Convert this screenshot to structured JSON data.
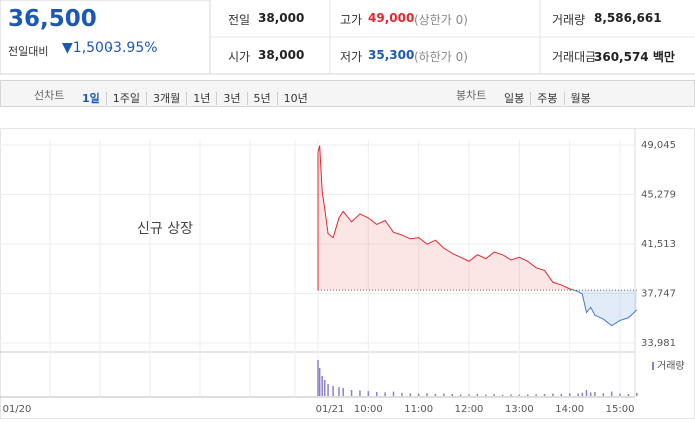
{
  "quote": {
    "price": "36,500",
    "change_label": "전일대비",
    "change": "1,500",
    "change_rate": "-3.95%",
    "prev_close_label": "전일",
    "prev_close": "38,000",
    "open_label": "시가",
    "open": "38,000",
    "high_label": "고가",
    "high": "49,000",
    "upper_limit": "(상한가 0)",
    "low_label": "저가",
    "low": "35,300",
    "lower_limit": "(하한가 0)",
    "volume_label": "거래량",
    "volume": "8,586,661",
    "amount_label": "거래대금",
    "amount": "360,574 백만"
  },
  "toolbar": {
    "line_label": "선차트",
    "line_tabs": [
      "1일",
      "1주일",
      "3개월",
      "1년",
      "3년",
      "5년",
      "10년"
    ],
    "candle_label": "봉차트",
    "candle_tabs": [
      "일봉",
      "주봉",
      "월봉"
    ]
  },
  "chart_data": {
    "type": "line",
    "annotation": "신규 상장",
    "prev_day_label": "01/20",
    "x": [
      "09:00",
      "09:02",
      "09:05",
      "09:08",
      "09:12",
      "09:18",
      "09:25",
      "09:30",
      "09:40",
      "09:50",
      "10:00",
      "10:10",
      "10:20",
      "10:30",
      "10:40",
      "10:50",
      "11:00",
      "11:10",
      "11:20",
      "11:30",
      "11:40",
      "11:50",
      "12:00",
      "12:10",
      "12:20",
      "12:30",
      "12:40",
      "12:50",
      "13:00",
      "13:10",
      "13:20",
      "13:30",
      "13:40",
      "13:50",
      "14:00",
      "14:10",
      "14:15",
      "14:20",
      "14:25",
      "14:30",
      "14:40",
      "14:50",
      "15:00",
      "15:10",
      "15:20"
    ],
    "series": [
      {
        "values": [
          48500,
          49000,
          45500,
          44200,
          42300,
          42000,
          43500,
          44000,
          43200,
          43800,
          43500,
          43000,
          43300,
          42400,
          42200,
          41900,
          42000,
          41500,
          41800,
          41200,
          40800,
          40500,
          40200,
          40700,
          40400,
          40900,
          40700,
          40300,
          40500,
          40200,
          39700,
          39500,
          38600,
          38400,
          38100,
          37900,
          37700,
          36300,
          36700,
          36100,
          35800,
          35300,
          35700,
          35900,
          36500
        ],
        "color": "#e2282d",
        "down_color": "#3f7ccf"
      }
    ],
    "baseline": 38000,
    "volume": {
      "name": "거래량",
      "color": "#8a80c8",
      "values": [
        900000,
        700000,
        500000,
        400000,
        300000,
        250000,
        220000,
        200000,
        150000,
        140000,
        120000,
        100000,
        90000,
        110000,
        80000,
        70000,
        60000,
        70000,
        50000,
        60000,
        50000,
        40000,
        40000,
        50000,
        35000,
        45000,
        30000,
        40000,
        35000,
        40000,
        45000,
        50000,
        60000,
        55000,
        70000,
        60000,
        80000,
        150000,
        90000,
        100000,
        70000,
        110000,
        60000,
        50000,
        80000
      ]
    },
    "ylim": [
      33981,
      49045
    ],
    "yticks": [
      {
        "value": 49045,
        "label": "49,045"
      },
      {
        "value": 45279,
        "label": "45,279"
      },
      {
        "value": 41513,
        "label": "41,513"
      },
      {
        "value": 37747,
        "label": "37,747"
      },
      {
        "value": 33981,
        "label": "33,981"
      }
    ],
    "xticks": [
      {
        "value": "09:00",
        "label": "01/21"
      },
      "10:00",
      "11:00",
      "12:00",
      "13:00",
      "14:00",
      "15:00"
    ],
    "grid": true
  }
}
